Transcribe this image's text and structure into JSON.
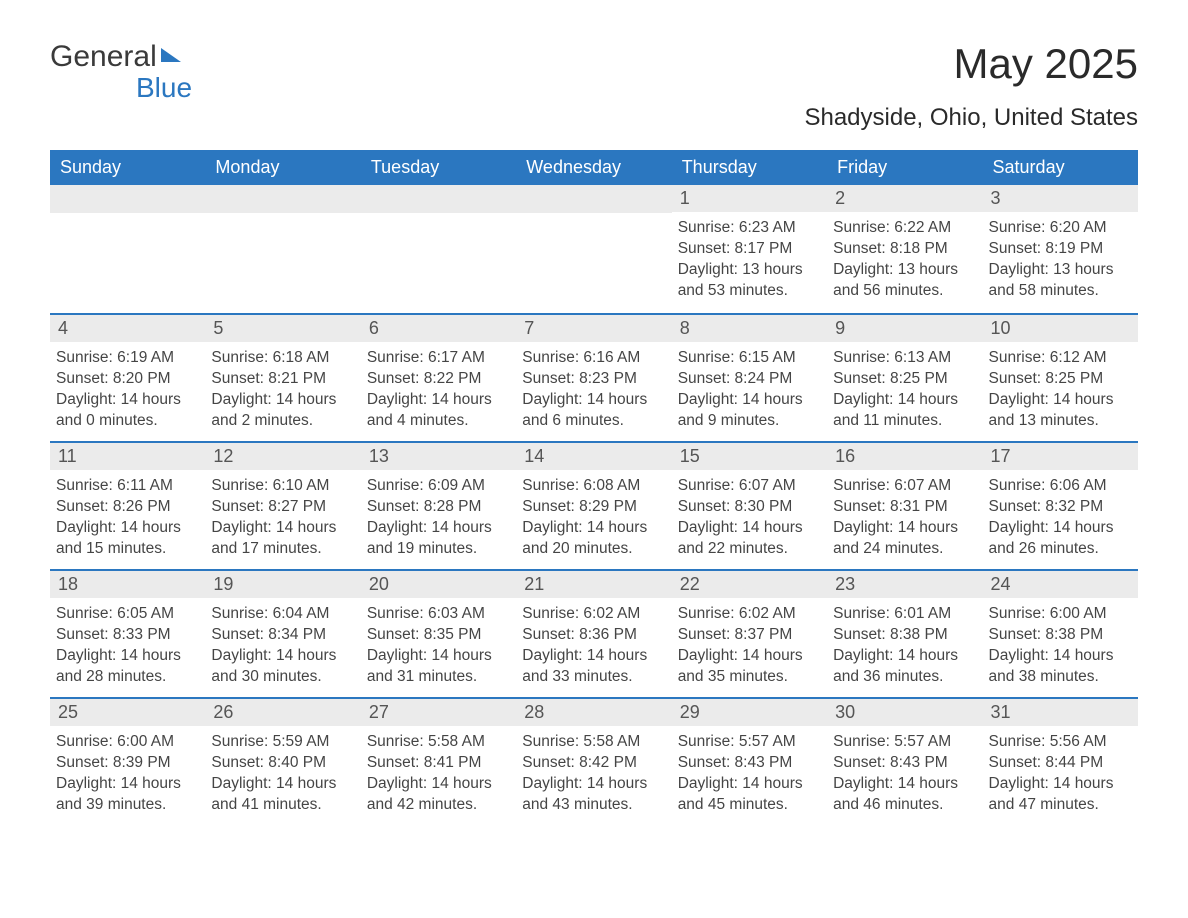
{
  "logo": {
    "part1": "General",
    "part2": "Blue"
  },
  "title": "May 2025",
  "location": "Shadyside, Ohio, United States",
  "colors": {
    "brand_blue": "#2b77c0",
    "header_bg": "#2b77c0",
    "header_text": "#ffffff",
    "daynum_bg": "#ebebeb",
    "text": "#454545",
    "title_text": "#2a2a2a"
  },
  "weekday_labels": [
    "Sunday",
    "Monday",
    "Tuesday",
    "Wednesday",
    "Thursday",
    "Friday",
    "Saturday"
  ],
  "weeks": [
    [
      null,
      null,
      null,
      null,
      {
        "day": "1",
        "sunrise": "6:23 AM",
        "sunset": "8:17 PM",
        "daylight": "13 hours and 53 minutes."
      },
      {
        "day": "2",
        "sunrise": "6:22 AM",
        "sunset": "8:18 PM",
        "daylight": "13 hours and 56 minutes."
      },
      {
        "day": "3",
        "sunrise": "6:20 AM",
        "sunset": "8:19 PM",
        "daylight": "13 hours and 58 minutes."
      }
    ],
    [
      {
        "day": "4",
        "sunrise": "6:19 AM",
        "sunset": "8:20 PM",
        "daylight": "14 hours and 0 minutes."
      },
      {
        "day": "5",
        "sunrise": "6:18 AM",
        "sunset": "8:21 PM",
        "daylight": "14 hours and 2 minutes."
      },
      {
        "day": "6",
        "sunrise": "6:17 AM",
        "sunset": "8:22 PM",
        "daylight": "14 hours and 4 minutes."
      },
      {
        "day": "7",
        "sunrise": "6:16 AM",
        "sunset": "8:23 PM",
        "daylight": "14 hours and 6 minutes."
      },
      {
        "day": "8",
        "sunrise": "6:15 AM",
        "sunset": "8:24 PM",
        "daylight": "14 hours and 9 minutes."
      },
      {
        "day": "9",
        "sunrise": "6:13 AM",
        "sunset": "8:25 PM",
        "daylight": "14 hours and 11 minutes."
      },
      {
        "day": "10",
        "sunrise": "6:12 AM",
        "sunset": "8:25 PM",
        "daylight": "14 hours and 13 minutes."
      }
    ],
    [
      {
        "day": "11",
        "sunrise": "6:11 AM",
        "sunset": "8:26 PM",
        "daylight": "14 hours and 15 minutes."
      },
      {
        "day": "12",
        "sunrise": "6:10 AM",
        "sunset": "8:27 PM",
        "daylight": "14 hours and 17 minutes."
      },
      {
        "day": "13",
        "sunrise": "6:09 AM",
        "sunset": "8:28 PM",
        "daylight": "14 hours and 19 minutes."
      },
      {
        "day": "14",
        "sunrise": "6:08 AM",
        "sunset": "8:29 PM",
        "daylight": "14 hours and 20 minutes."
      },
      {
        "day": "15",
        "sunrise": "6:07 AM",
        "sunset": "8:30 PM",
        "daylight": "14 hours and 22 minutes."
      },
      {
        "day": "16",
        "sunrise": "6:07 AM",
        "sunset": "8:31 PM",
        "daylight": "14 hours and 24 minutes."
      },
      {
        "day": "17",
        "sunrise": "6:06 AM",
        "sunset": "8:32 PM",
        "daylight": "14 hours and 26 minutes."
      }
    ],
    [
      {
        "day": "18",
        "sunrise": "6:05 AM",
        "sunset": "8:33 PM",
        "daylight": "14 hours and 28 minutes."
      },
      {
        "day": "19",
        "sunrise": "6:04 AM",
        "sunset": "8:34 PM",
        "daylight": "14 hours and 30 minutes."
      },
      {
        "day": "20",
        "sunrise": "6:03 AM",
        "sunset": "8:35 PM",
        "daylight": "14 hours and 31 minutes."
      },
      {
        "day": "21",
        "sunrise": "6:02 AM",
        "sunset": "8:36 PM",
        "daylight": "14 hours and 33 minutes."
      },
      {
        "day": "22",
        "sunrise": "6:02 AM",
        "sunset": "8:37 PM",
        "daylight": "14 hours and 35 minutes."
      },
      {
        "day": "23",
        "sunrise": "6:01 AM",
        "sunset": "8:38 PM",
        "daylight": "14 hours and 36 minutes."
      },
      {
        "day": "24",
        "sunrise": "6:00 AM",
        "sunset": "8:38 PM",
        "daylight": "14 hours and 38 minutes."
      }
    ],
    [
      {
        "day": "25",
        "sunrise": "6:00 AM",
        "sunset": "8:39 PM",
        "daylight": "14 hours and 39 minutes."
      },
      {
        "day": "26",
        "sunrise": "5:59 AM",
        "sunset": "8:40 PM",
        "daylight": "14 hours and 41 minutes."
      },
      {
        "day": "27",
        "sunrise": "5:58 AM",
        "sunset": "8:41 PM",
        "daylight": "14 hours and 42 minutes."
      },
      {
        "day": "28",
        "sunrise": "5:58 AM",
        "sunset": "8:42 PM",
        "daylight": "14 hours and 43 minutes."
      },
      {
        "day": "29",
        "sunrise": "5:57 AM",
        "sunset": "8:43 PM",
        "daylight": "14 hours and 45 minutes."
      },
      {
        "day": "30",
        "sunrise": "5:57 AM",
        "sunset": "8:43 PM",
        "daylight": "14 hours and 46 minutes."
      },
      {
        "day": "31",
        "sunrise": "5:56 AM",
        "sunset": "8:44 PM",
        "daylight": "14 hours and 47 minutes."
      }
    ]
  ],
  "labels": {
    "sunrise": "Sunrise: ",
    "sunset": "Sunset: ",
    "daylight": "Daylight: "
  }
}
